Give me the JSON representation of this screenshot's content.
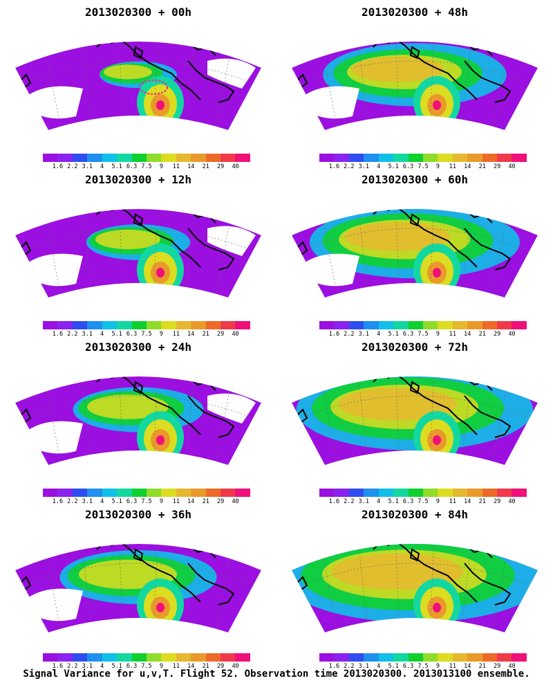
{
  "panels": [
    {
      "title": "2013020300 + 00h"
    },
    {
      "title": "2013020300 + 48h"
    },
    {
      "title": "2013020300 + 12h"
    },
    {
      "title": "2013020300 + 60h"
    },
    {
      "title": "2013020300 + 24h"
    },
    {
      "title": "2013020300 + 72h"
    },
    {
      "title": "2013020300 + 36h"
    },
    {
      "title": "2013020300 + 84h"
    }
  ],
  "colorbar": {
    "ticks": [
      "1.6",
      "2.2",
      "3.1",
      "4",
      "5.1",
      "6.3",
      "7.5",
      "9",
      "11",
      "14",
      "21",
      "29",
      "40"
    ],
    "colors": [
      "#9b0fe0",
      "#8a22f0",
      "#2f4df0",
      "#1f8ff0",
      "#10c0e8",
      "#12d8a0",
      "#10d030",
      "#8fdc2a",
      "#dcdc20",
      "#e6b830",
      "#ea9a2a",
      "#ee6a2a",
      "#f03a4a",
      "#f0107a"
    ]
  },
  "caption": "Signal Variance for u,v,T. Flight 52. Observation time 2013020300. 2013013100 ensemble."
}
